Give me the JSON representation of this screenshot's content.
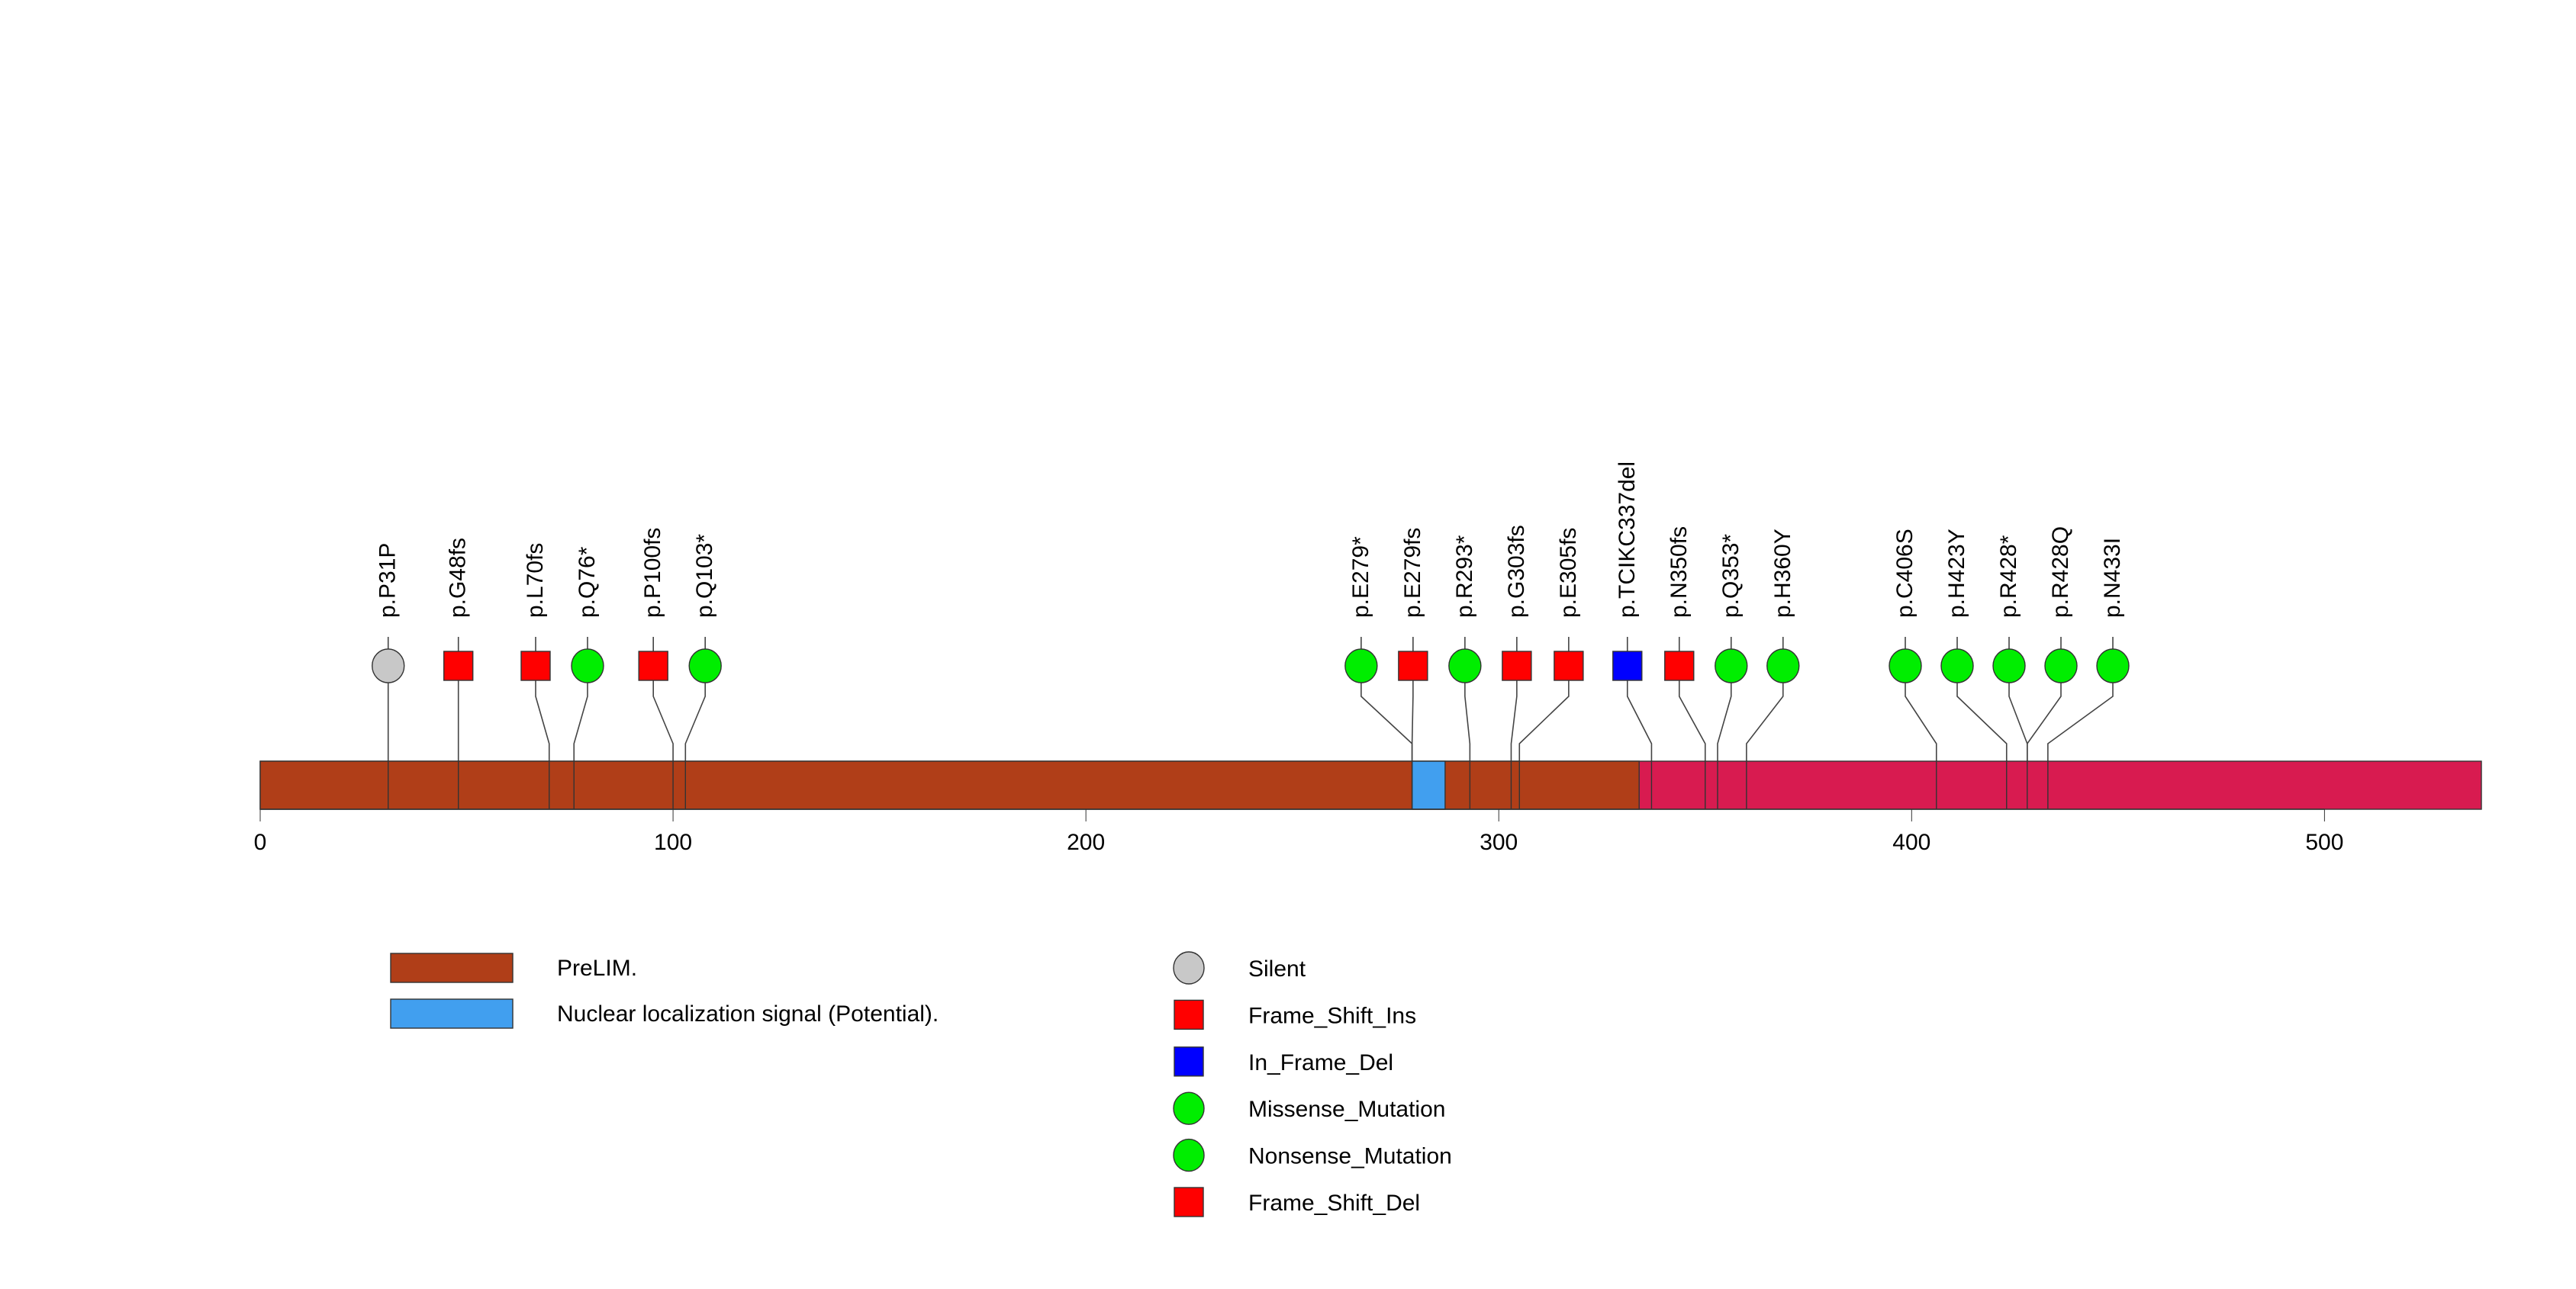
{
  "chart_data": {
    "type": "lollipop",
    "protein_length": 538,
    "xlim": [
      0,
      538
    ],
    "axis_ticks": [
      0,
      100,
      200,
      300,
      400,
      500
    ],
    "backbone_color": "#d81b50",
    "domains": [
      {
        "name": "PreLIM.",
        "start": 0,
        "end": 334,
        "color": "#b03e18"
      },
      {
        "name": "Nuclear localization signal (Potential).",
        "start": 279,
        "end": 287,
        "color": "#419fef"
      }
    ],
    "mutation_types": [
      {
        "name": "Silent",
        "shape": "circle",
        "color": "#c8c8c8"
      },
      {
        "name": "Frame_Shift_Ins",
        "shape": "square",
        "color": "#ff0000"
      },
      {
        "name": "In_Frame_Del",
        "shape": "square",
        "color": "#0000ff"
      },
      {
        "name": "Missense_Mutation",
        "shape": "circle",
        "color": "#00ee00"
      },
      {
        "name": "Nonsense_Mutation",
        "shape": "circle",
        "color": "#00ee00"
      },
      {
        "name": "Frame_Shift_Del",
        "shape": "square",
        "color": "#ff0000"
      }
    ],
    "mutations": [
      {
        "label": "p.P31P",
        "position": 31,
        "type": "Silent"
      },
      {
        "label": "p.G48fs",
        "position": 48,
        "type": "Frame_Shift_Del"
      },
      {
        "label": "p.L70fs",
        "position": 70,
        "type": "Frame_Shift_Del"
      },
      {
        "label": "p.Q76*",
        "position": 76,
        "type": "Nonsense_Mutation"
      },
      {
        "label": "p.P100fs",
        "position": 100,
        "type": "Frame_Shift_Del"
      },
      {
        "label": "p.Q103*",
        "position": 103,
        "type": "Nonsense_Mutation"
      },
      {
        "label": "p.E279*",
        "position": 279,
        "type": "Nonsense_Mutation"
      },
      {
        "label": "p.E279fs",
        "position": 279,
        "type": "Frame_Shift_Del"
      },
      {
        "label": "p.R293*",
        "position": 293,
        "type": "Nonsense_Mutation"
      },
      {
        "label": "p.G303fs",
        "position": 303,
        "type": "Frame_Shift_Del"
      },
      {
        "label": "p.E305fs",
        "position": 305,
        "type": "Frame_Shift_Del"
      },
      {
        "label": "p.TCIKC337del",
        "position": 337,
        "type": "In_Frame_Del"
      },
      {
        "label": "p.N350fs",
        "position": 350,
        "type": "Frame_Shift_Del"
      },
      {
        "label": "p.Q353*",
        "position": 353,
        "type": "Nonsense_Mutation"
      },
      {
        "label": "p.H360Y",
        "position": 360,
        "type": "Missense_Mutation"
      },
      {
        "label": "p.C406S",
        "position": 406,
        "type": "Missense_Mutation"
      },
      {
        "label": "p.H423Y",
        "position": 423,
        "type": "Missense_Mutation"
      },
      {
        "label": "p.R428*",
        "position": 428,
        "type": "Nonsense_Mutation"
      },
      {
        "label": "p.R428Q",
        "position": 428,
        "type": "Missense_Mutation"
      },
      {
        "label": "p.N433I",
        "position": 433,
        "type": "Missense_Mutation"
      }
    ]
  }
}
